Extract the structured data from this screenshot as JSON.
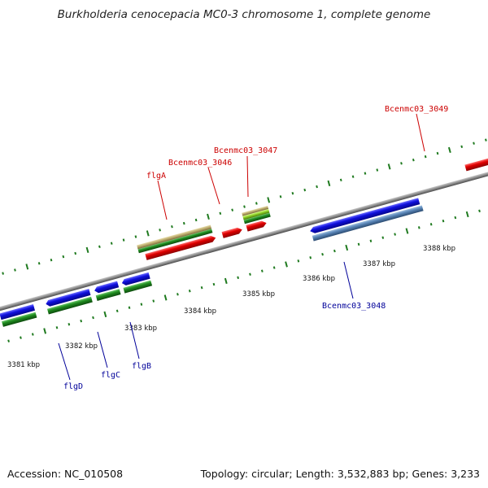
{
  "title": "Burkholderia cenocepacia MC0-3 chromosome 1, complete genome",
  "footer": {
    "accession": "Accession: NC_010508",
    "topology": "Topology: circular; Length: 3,532,883 bp; Genes: 3,233"
  },
  "colors": {
    "backbone": "#8a8a8a",
    "tick": "#1f7a1f",
    "forward_cds": "#e00000",
    "reverse_cds": "#1010dd",
    "reverse_gene": "#1f8a1f",
    "reverse_rna": "#5a86b8",
    "forward_pseudo": "#b8a86a",
    "forward_gene": "#2a9a2a",
    "forward_misc": "#88cc22",
    "light_red": "#f08a8a",
    "forward_label": "#cc0000",
    "reverse_label": "#000099"
  },
  "kbp_labels": [
    "3381 kbp",
    "3382 kbp",
    "3383 kbp",
    "3384 kbp",
    "3385 kbp",
    "3386 kbp",
    "3387 kbp",
    "3388 kbp"
  ],
  "gene_labels_forward": [
    "flgA",
    "Bcenmc03_3046",
    "Bcenmc03_3047",
    "Bcenmc03_3049"
  ],
  "gene_labels_reverse": [
    "flgD",
    "flgC",
    "flgB",
    "Bcenmc03_3048"
  ]
}
